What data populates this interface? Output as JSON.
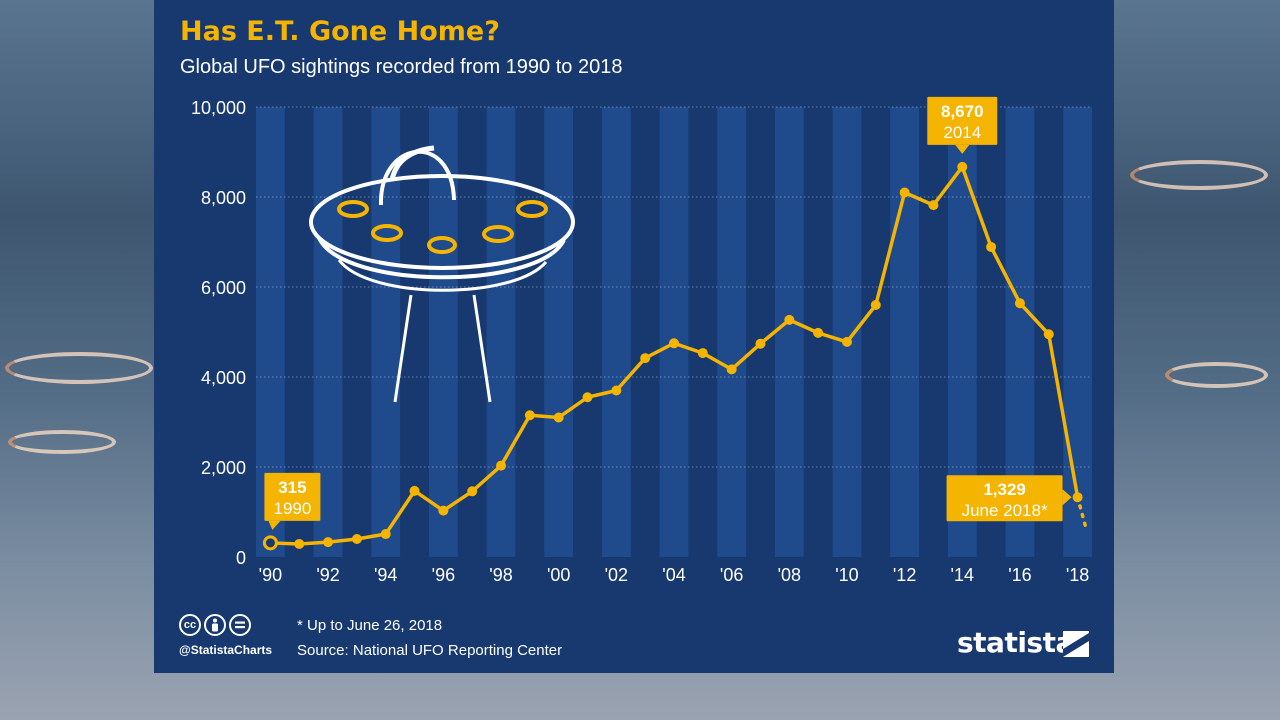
{
  "header": {
    "title": "Has E.T. Gone Home?",
    "subtitle": "Global UFO sightings recorded from 1990 to 2018"
  },
  "footer": {
    "note": "* Up to June 26, 2018",
    "source": "Source: National UFO Reporting Center",
    "handle": "@StatistaCharts",
    "brand": "statista",
    "license_icons": [
      "cc",
      "attribution-icon",
      "no-derivatives-icon"
    ]
  },
  "colors": {
    "panel": "#17396f",
    "stripe": "#1f4a8c",
    "line": "#f5b400",
    "title": "#f5b400"
  },
  "chart_data": {
    "type": "line",
    "title": "Has E.T. Gone Home?",
    "subtitle": "Global UFO sightings recorded from 1990 to 2018",
    "xlabel": "",
    "ylabel": "",
    "ylim": [
      0,
      10000
    ],
    "y_ticks": [
      0,
      2000,
      4000,
      6000,
      8000,
      10000
    ],
    "y_tick_labels": [
      "0",
      "2,000",
      "4,000",
      "6,000",
      "8,000",
      "10,000"
    ],
    "x_tick_labels": [
      "'90",
      "'92",
      "'94",
      "'96",
      "'98",
      "'00",
      "'02",
      "'04",
      "'06",
      "'08",
      "'10",
      "'12",
      "'14",
      "'16",
      "'18"
    ],
    "x": [
      1990,
      1991,
      1992,
      1993,
      1994,
      1995,
      1996,
      1997,
      1998,
      1999,
      2000,
      2001,
      2002,
      2003,
      2004,
      2005,
      2006,
      2007,
      2008,
      2009,
      2010,
      2011,
      2012,
      2013,
      2014,
      2015,
      2016,
      2017,
      2018
    ],
    "series": [
      {
        "values": [
          315,
          290,
          330,
          400,
          510,
          1470,
          1030,
          1460,
          2030,
          3150,
          3100,
          3550,
          3700,
          4420,
          4750,
          4530,
          4170,
          4740,
          5270,
          4980,
          4780,
          5600,
          8100,
          7820,
          8670,
          6890,
          5640,
          4950,
          1329
        ]
      }
    ],
    "projection": {
      "x": 2018.3,
      "value": 620
    },
    "annotations": [
      {
        "value_label": "315",
        "year_label": "1990",
        "x": 1990,
        "y": 315
      },
      {
        "value_label": "8,670",
        "year_label": "2014",
        "x": 2014,
        "y": 8670
      },
      {
        "value_label": "1,329",
        "year_label": "June 2018*",
        "x": 2018,
        "y": 1329
      }
    ],
    "grid": true,
    "legend": "none"
  }
}
